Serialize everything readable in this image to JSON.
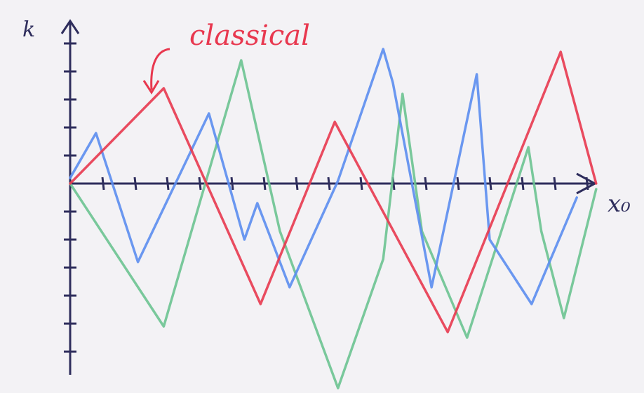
{
  "chart_data": {
    "type": "line",
    "x_label": "x₀",
    "y_label": "k",
    "xlim": [
      0,
      16.5
    ],
    "ylim": [
      -7,
      6
    ],
    "xticks": [
      1,
      2,
      3,
      4,
      5,
      6,
      7,
      8,
      9,
      10,
      11,
      12,
      13,
      14,
      15,
      16
    ],
    "yticks": [
      -6,
      -5,
      -4,
      -3,
      -2,
      -1,
      1,
      2,
      3,
      4,
      5
    ],
    "series": [
      {
        "name": "classical",
        "color": "#e8384f",
        "x": [
          0,
          2.9,
          5.9,
          8.2,
          11.7,
          15.2,
          16.3
        ],
        "values": [
          0,
          3.4,
          -4.3,
          2.2,
          -5.3,
          4.7,
          0
        ]
      },
      {
        "color": "#5b8def",
        "x": [
          0,
          0.8,
          2.1,
          4.3,
          5.4,
          5.8,
          6.0,
          6.8,
          8.3,
          9.7,
          10.0,
          11.2,
          12.6,
          13.0,
          14.3,
          15.7
        ],
        "values": [
          0.2,
          1.8,
          -2.8,
          2.5,
          -2.0,
          -0.7,
          -1.3,
          -3.7,
          0.1,
          4.8,
          3.6,
          -3.7,
          3.9,
          -2.0,
          -4.3,
          -0.5
        ]
      },
      {
        "color": "#6cc391",
        "x": [
          0,
          2.9,
          5.3,
          6.5,
          8.3,
          9.7,
          10.3,
          10.9,
          12.3,
          14.2,
          14.6,
          15.3,
          16.3
        ],
        "values": [
          0,
          -5.1,
          4.4,
          -1.7,
          -7.3,
          -2.7,
          3.2,
          -1.7,
          -5.5,
          1.3,
          -1.7,
          -4.8,
          -0.2
        ]
      }
    ]
  }
}
